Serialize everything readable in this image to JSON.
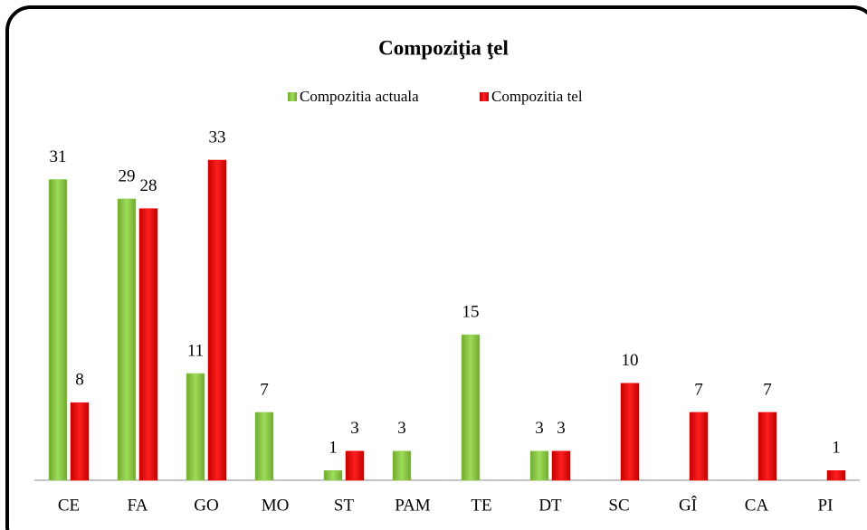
{
  "chart_data": {
    "type": "bar",
    "title": "Compoziţia ţel",
    "categories": [
      "CE",
      "FA",
      "GO",
      "MO",
      "ST",
      "PAM",
      "TE",
      "DT",
      "SC",
      "GÎ",
      "CA",
      "PI"
    ],
    "series": [
      {
        "name": "Compozitia actuala",
        "color": "#92d050",
        "values": [
          31,
          29,
          11,
          7,
          1,
          3,
          15,
          3,
          null,
          null,
          null,
          null
        ]
      },
      {
        "name": "Compozitia tel",
        "color": "#ff0000",
        "values": [
          8,
          28,
          33,
          null,
          3,
          null,
          null,
          3,
          10,
          7,
          7,
          1
        ]
      }
    ],
    "legend": "top"
  }
}
